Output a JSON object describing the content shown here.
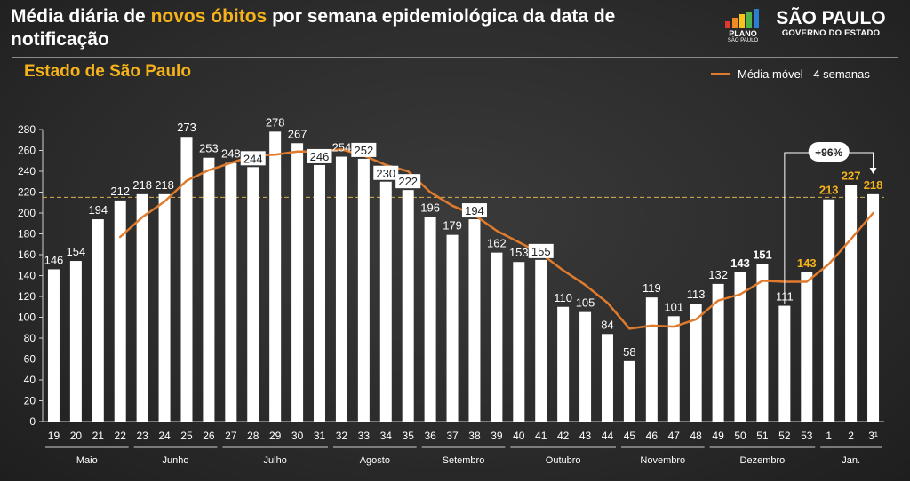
{
  "header": {
    "title_pre": "Média diária de ",
    "title_highlight": "novos óbitos",
    "title_post": " por semana epidemiológica da data de notificação",
    "subtitle": "Estado de São Paulo",
    "logo_plano_line1": "PLANO",
    "logo_plano_line2": "SÃO PAULO",
    "logo_sp_line1": "SÃO PAULO",
    "logo_sp_line2": "GOVERNO DO ESTADO"
  },
  "colors": {
    "bar": "#ffffff",
    "moving_average": "#e07b2e",
    "highlight_label": "#f5b21b",
    "reference_line": "#d8b24a"
  },
  "chart_data": {
    "type": "bar",
    "title": "Média diária de novos óbitos por semana epidemiológica da data de notificação",
    "ylim": [
      0,
      280
    ],
    "yticks": [
      0,
      20,
      40,
      60,
      80,
      100,
      120,
      140,
      160,
      180,
      200,
      220,
      240,
      260,
      280
    ],
    "categories": [
      "19",
      "20",
      "21",
      "22",
      "23",
      "24",
      "25",
      "26",
      "27",
      "28",
      "29",
      "30",
      "31",
      "32",
      "33",
      "34",
      "35",
      "36",
      "37",
      "38",
      "39",
      "40",
      "41",
      "42",
      "43",
      "44",
      "45",
      "46",
      "47",
      "48",
      "49",
      "50",
      "51",
      "52",
      "53",
      "1",
      "2",
      "3¹"
    ],
    "values": [
      146,
      154,
      194,
      212,
      218,
      218,
      273,
      253,
      248,
      244,
      278,
      267,
      246,
      254,
      252,
      230,
      222,
      196,
      179,
      194,
      162,
      153,
      155,
      110,
      105,
      84,
      58,
      119,
      101,
      113,
      132,
      143,
      151,
      111,
      143,
      213,
      227,
      218
    ],
    "label_style": [
      "plain",
      "plain",
      "plain",
      "plain",
      "plain",
      "plain",
      "plain",
      "plain",
      "plain",
      "boxed",
      "plain",
      "plain",
      "boxed",
      "plain",
      "boxed",
      "boxed",
      "boxed",
      "plain",
      "plain",
      "boxed",
      "plain",
      "plain",
      "boxed",
      "plain",
      "plain",
      "plain",
      "plain",
      "plain",
      "plain",
      "plain",
      "plain",
      "bold",
      "bold",
      "plain",
      "orange",
      "orange",
      "orange",
      "orange"
    ],
    "series": [
      {
        "name": "Média móvel - 4 semanas",
        "type": "line",
        "values": [
          null,
          null,
          null,
          177,
          196,
          211,
          231,
          241,
          248,
          255,
          256,
          259,
          259,
          261,
          255,
          246,
          240,
          220,
          207,
          198,
          183,
          172,
          161,
          145,
          131,
          114,
          89,
          92,
          91,
          98,
          116,
          122,
          135,
          134,
          134,
          151,
          175,
          200
        ]
      }
    ],
    "reference_line": 215,
    "annotation": {
      "text": "+96%",
      "from_category": "52",
      "to_category": "3¹"
    },
    "months": [
      {
        "name": "Maio",
        "from": "19",
        "to": "22"
      },
      {
        "name": "Junho",
        "from": "23",
        "to": "26"
      },
      {
        "name": "Julho",
        "from": "27",
        "to": "31"
      },
      {
        "name": "Agosto",
        "from": "32",
        "to": "35"
      },
      {
        "name": "Setembro",
        "from": "36",
        "to": "39"
      },
      {
        "name": "Outubro",
        "from": "40",
        "to": "44"
      },
      {
        "name": "Novembro",
        "from": "45",
        "to": "48"
      },
      {
        "name": "Dezembro",
        "from": "49",
        "to": "53"
      },
      {
        "name": "Jan.",
        "from": "1",
        "to": "3¹"
      }
    ]
  }
}
